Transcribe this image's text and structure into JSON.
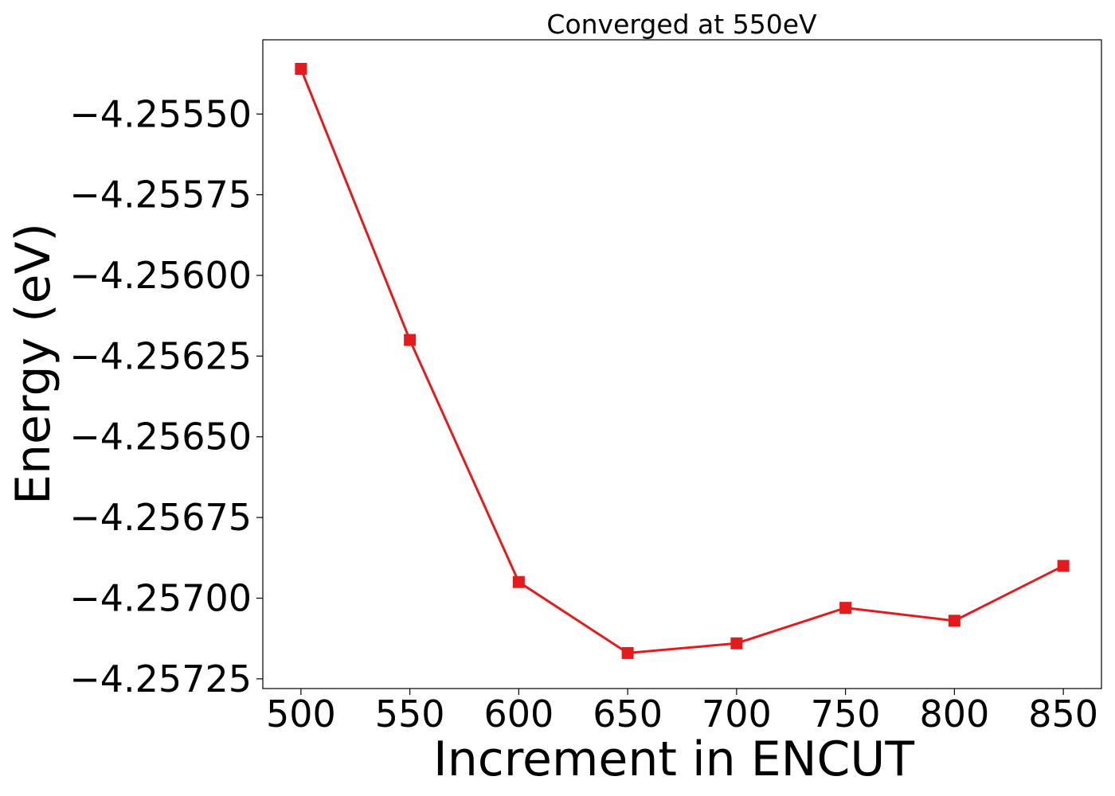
{
  "chart_data": {
    "type": "line",
    "title": "Converged at 550eV",
    "xlabel": "Increment in ENCUT",
    "ylabel": "Energy (eV)",
    "x": [
      500,
      550,
      600,
      650,
      700,
      750,
      800,
      850
    ],
    "series": [
      {
        "values": [
          -4.25536,
          -4.2562,
          -4.25695,
          -4.25717,
          -4.25714,
          -4.25703,
          -4.25707,
          -4.2569
        ],
        "color": "#e41a1c",
        "marker": "square"
      }
    ],
    "xticks": [
      500,
      550,
      600,
      650,
      700,
      750,
      800,
      850
    ],
    "xtick_labels": [
      "500",
      "550",
      "600",
      "650",
      "700",
      "750",
      "800",
      "850"
    ],
    "yticks": [
      -4.2555,
      -4.25575,
      -4.256,
      -4.25625,
      -4.2565,
      -4.25675,
      -4.257,
      -4.25725
    ],
    "ytick_labels": [
      "−4.25550",
      "−4.25575",
      "−4.25600",
      "−4.25625",
      "−4.25650",
      "−4.25675",
      "−4.25700",
      "−4.25725"
    ],
    "xlim": [
      482.5,
      867.5
    ],
    "ylim": [
      -4.25728,
      -4.25527
    ],
    "grid": false,
    "legend": "none"
  }
}
